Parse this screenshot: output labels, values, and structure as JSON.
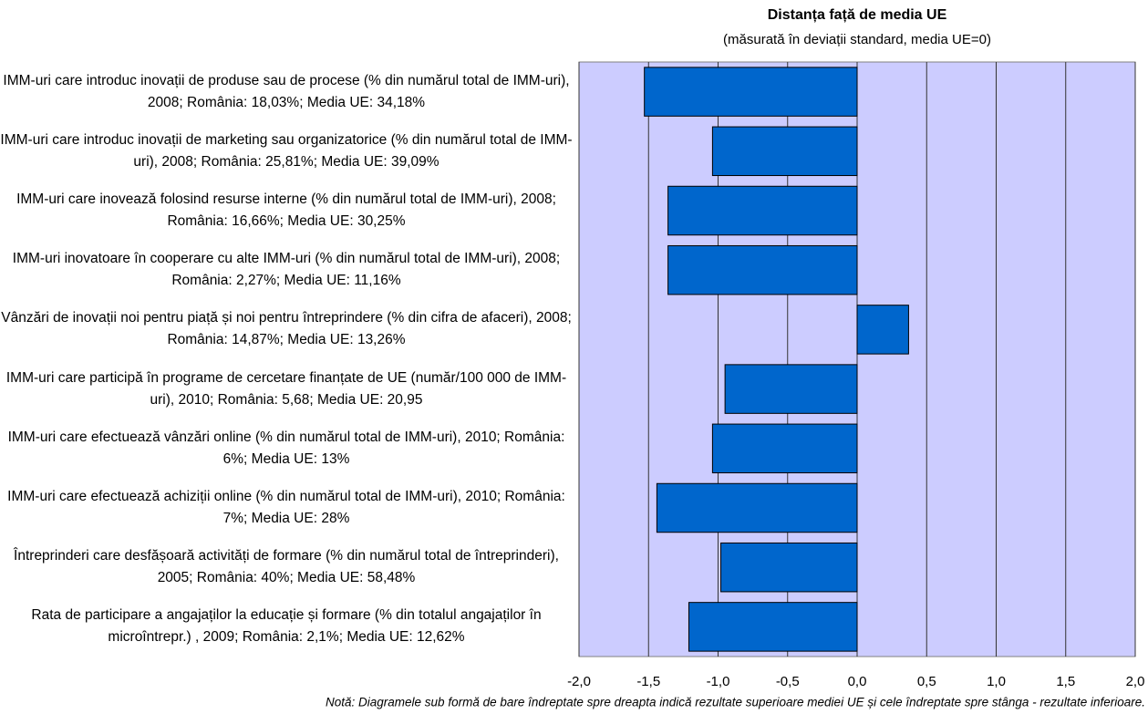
{
  "chart_data": {
    "type": "hbar",
    "title": "Distanța față de media UE",
    "subtitle": "(măsurată în deviații standard, media UE=0)",
    "categories": [
      "IMM-uri care introduc inovații de produse sau de procese (% din numărul total de IMM-uri), 2008; România: 18,03%; Media UE: 34,18%",
      "IMM-uri care introduc inovații de marketing sau organizatorice (% din numărul total de IMM-uri), 2008; România: 25,81%; Media UE: 39,09%",
      "IMM-uri care inovează folosind resurse interne (% din numărul total de IMM-uri), 2008; România: 16,66%; Media UE: 30,25%",
      "IMM-uri inovatoare în cooperare cu alte IMM-uri (% din numărul total de IMM-uri), 2008; România: 2,27%; Media UE: 11,16%",
      "Vânzări de inovații noi pentru piață și noi pentru întreprindere (% din cifra de afaceri), 2008; România: 14,87%; Media UE: 13,26%",
      "IMM-uri care participă în programe de cercetare finanțate de UE (număr/100 000 de IMM-uri), 2010; România: 5,68; Media UE: 20,95",
      "IMM-uri care efectuează vânzări online (% din numărul total de IMM-uri), 2010; România: 6%; Media UE: 13%",
      "IMM-uri care efectuează achiziții online (% din numărul total de IMM-uri), 2010; România: 7%; Media UE: 28%",
      "Întreprinderi care desfășoară activități de formare (% din numărul total de întreprinderi), 2005; România: 40%; Media UE: 58,48%",
      "Rata de participare a angajaților la educație și formare (% din totalul angajaților în microîntrepr.) , 2009; România: 2,1%; Media UE: 12,62%"
    ],
    "values": [
      -1.53,
      -1.04,
      -1.36,
      -1.36,
      0.37,
      -0.95,
      -1.04,
      -1.44,
      -0.98,
      -1.21
    ],
    "color": "#0066cc",
    "background": "#ccccff",
    "xlim": [
      -2,
      2
    ],
    "xticks": [
      {
        "value": -2,
        "label": "-2,0"
      },
      {
        "value": -1.5,
        "label": "-1,5"
      },
      {
        "value": -1,
        "label": "-1,0"
      },
      {
        "value": -0.5,
        "label": "-0,5"
      },
      {
        "value": 0,
        "label": "0,0"
      },
      {
        "value": 0.5,
        "label": "0,5"
      },
      {
        "value": 1,
        "label": "1,0"
      },
      {
        "value": 1.5,
        "label": "1,5"
      },
      {
        "value": 2,
        "label": "2,0"
      }
    ],
    "grid": true,
    "note": "Notă: Diagramele sub formă de bare îndreptate spre dreapta indică rezultate superioare mediei UE și cele îndreptate spre stânga - rezultate inferioare."
  }
}
